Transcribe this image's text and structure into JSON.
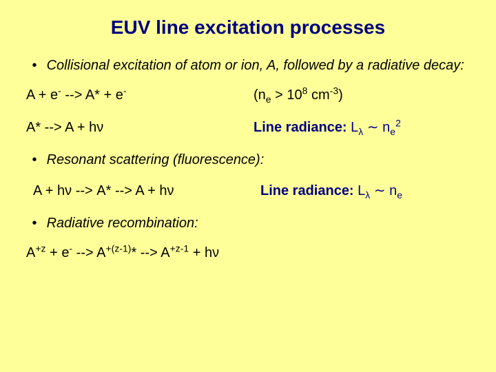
{
  "title": "EUV line excitation processes",
  "section1": {
    "bullet": "Collisional excitation of atom or ion, A, followed by a radiative decay:",
    "eq1_left_pre": "A + e",
    "eq1_left_mid": "  -->  A* + e",
    "cond_pre": "(n",
    "cond_sub": "e",
    "cond_mid": " > 10",
    "cond_sup1": "8",
    "cond_mid2": " cm",
    "cond_sup2": "-3",
    "cond_post": ")",
    "eq2_left": "A*  -->   A + hν",
    "rad_label": "Line radiance:   ",
    "rad_expr_pre": "L",
    "rad_expr_sub": "λ",
    "rad_expr_mid": " ∼ n",
    "rad_expr_sub2": "e",
    "rad_expr_sup": "2"
  },
  "section2": {
    "bullet": "Resonant scattering (fluorescence):",
    "eq_left": "A + hν  -->  A*  -->  A + hν",
    "rad_label": "Line radiance:   ",
    "rad_expr_pre": "L",
    "rad_expr_sub": "λ",
    "rad_expr_mid": " ∼ n",
    "rad_expr_sub2": "e"
  },
  "section3": {
    "bullet": "Radiative recombination:",
    "eq_pre": "A",
    "eq_s1": "+z",
    "eq_m1": " + e",
    "eq_s2": "-",
    "eq_m2": "  -->  A",
    "eq_s3": "+(z-1)",
    "eq_m3": "*  -->  A",
    "eq_s4": "+z-1",
    "eq_m4": " + hν"
  },
  "colors": {
    "background": "#ffff99",
    "title": "#000080",
    "text": "#000000",
    "radiance": "#000080"
  }
}
